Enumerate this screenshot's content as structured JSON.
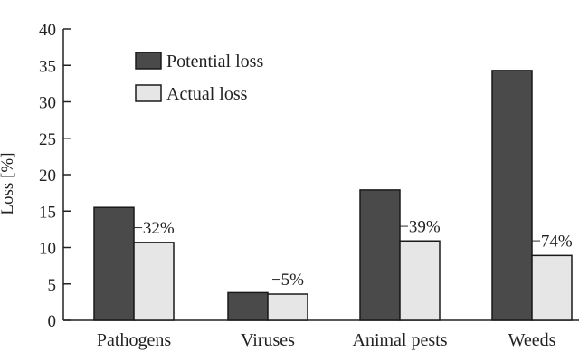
{
  "chart_data": {
    "type": "bar",
    "title": "",
    "xlabel": "",
    "ylabel": "Loss [%]",
    "ylim": [
      0,
      40
    ],
    "yticks": [
      0,
      5,
      10,
      15,
      20,
      25,
      30,
      35,
      40
    ],
    "grid": false,
    "legend_position": "top-left",
    "categories": [
      "Pathogens",
      "Viruses",
      "Animal pests",
      "Weeds"
    ],
    "series": [
      {
        "name": "Potential loss",
        "values": [
          15.5,
          3.8,
          17.9,
          34.3
        ],
        "color": "#4a4a4a"
      },
      {
        "name": "Actual loss",
        "values": [
          10.7,
          3.6,
          10.9,
          8.9
        ],
        "color": "#e6e6e6"
      }
    ],
    "annotations": [
      "−32%",
      "−5%",
      "−39%",
      "−74%"
    ]
  }
}
